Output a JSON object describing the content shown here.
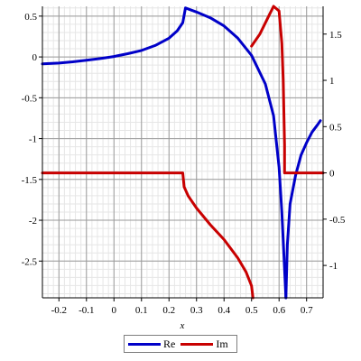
{
  "chart_data": {
    "type": "line",
    "xlabel": "x",
    "xlim": [
      -0.26,
      0.76
    ],
    "ylim_left": [
      -2.95,
      0.62
    ],
    "ylim_right": [
      -1.35,
      1.8
    ],
    "x_ticks": [
      -0.2,
      -0.1,
      0,
      0.1,
      0.2,
      0.3,
      0.4,
      0.5,
      0.6,
      0.7
    ],
    "x_tick_labels": [
      "-0.2",
      "-0.1",
      "0",
      "0.1",
      "0.2",
      "0.3",
      "0.4",
      "0.5",
      "0.6",
      "0.7"
    ],
    "y_left_ticks": [
      0.5,
      0,
      -0.5,
      -1,
      -1.5,
      -2,
      -2.5
    ],
    "y_left_tick_labels": [
      "0.5",
      "0",
      "-0.5",
      "-1",
      "-1.5",
      "-2",
      "-2.5"
    ],
    "y_right_ticks": [
      1.5,
      1,
      0.5,
      0,
      -0.5,
      -1
    ],
    "y_right_tick_labels": [
      "1.5",
      "1",
      "0.5",
      "0",
      "-0.5",
      "-1"
    ],
    "grid": true,
    "legend_position": "bottom-center",
    "series": [
      {
        "name": "Re",
        "color": "#0000c8",
        "axis": "left",
        "segments": [
          [
            [
              -0.26,
              -0.085
            ],
            [
              -0.2,
              -0.075
            ],
            [
              -0.15,
              -0.06
            ],
            [
              -0.1,
              -0.04
            ],
            [
              -0.05,
              -0.02
            ],
            [
              0,
              0.005
            ],
            [
              0.05,
              0.04
            ],
            [
              0.1,
              0.08
            ],
            [
              0.15,
              0.14
            ],
            [
              0.2,
              0.23
            ],
            [
              0.23,
              0.32
            ],
            [
              0.25,
              0.42
            ],
            [
              0.26,
              0.6
            ],
            [
              0.3,
              0.55
            ],
            [
              0.35,
              0.48
            ],
            [
              0.4,
              0.38
            ],
            [
              0.45,
              0.23
            ],
            [
              0.5,
              0.02
            ],
            [
              0.55,
              -0.33
            ],
            [
              0.58,
              -0.72
            ],
            [
              0.6,
              -1.35
            ],
            [
              0.61,
              -1.9
            ],
            [
              0.62,
              -2.6
            ],
            [
              0.625,
              -2.95
            ]
          ],
          [
            [
              0.625,
              -2.95
            ],
            [
              0.63,
              -2.3
            ],
            [
              0.64,
              -1.8
            ],
            [
              0.66,
              -1.45
            ],
            [
              0.68,
              -1.2
            ],
            [
              0.7,
              -1.05
            ],
            [
              0.72,
              -0.92
            ],
            [
              0.74,
              -0.83
            ],
            [
              0.75,
              -0.78
            ]
          ]
        ]
      },
      {
        "name": "Im",
        "color": "#c80000",
        "axis": "right",
        "segments": [
          [
            [
              -0.26,
              0
            ],
            [
              0.25,
              0
            ],
            [
              0.255,
              -0.15
            ],
            [
              0.27,
              -0.25
            ],
            [
              0.3,
              -0.38
            ],
            [
              0.35,
              -0.56
            ],
            [
              0.4,
              -0.72
            ],
            [
              0.45,
              -0.92
            ],
            [
              0.48,
              -1.07
            ],
            [
              0.5,
              -1.22
            ],
            [
              0.505,
              -1.35
            ]
          ],
          [
            [
              0.5,
              1.37
            ],
            [
              0.53,
              1.5
            ],
            [
              0.56,
              1.68
            ],
            [
              0.58,
              1.8
            ],
            [
              0.6,
              1.75
            ],
            [
              0.61,
              1.4
            ],
            [
              0.615,
              1.0
            ],
            [
              0.62,
              0.3
            ],
            [
              0.62,
              0
            ],
            [
              0.76,
              0
            ]
          ]
        ]
      }
    ]
  }
}
